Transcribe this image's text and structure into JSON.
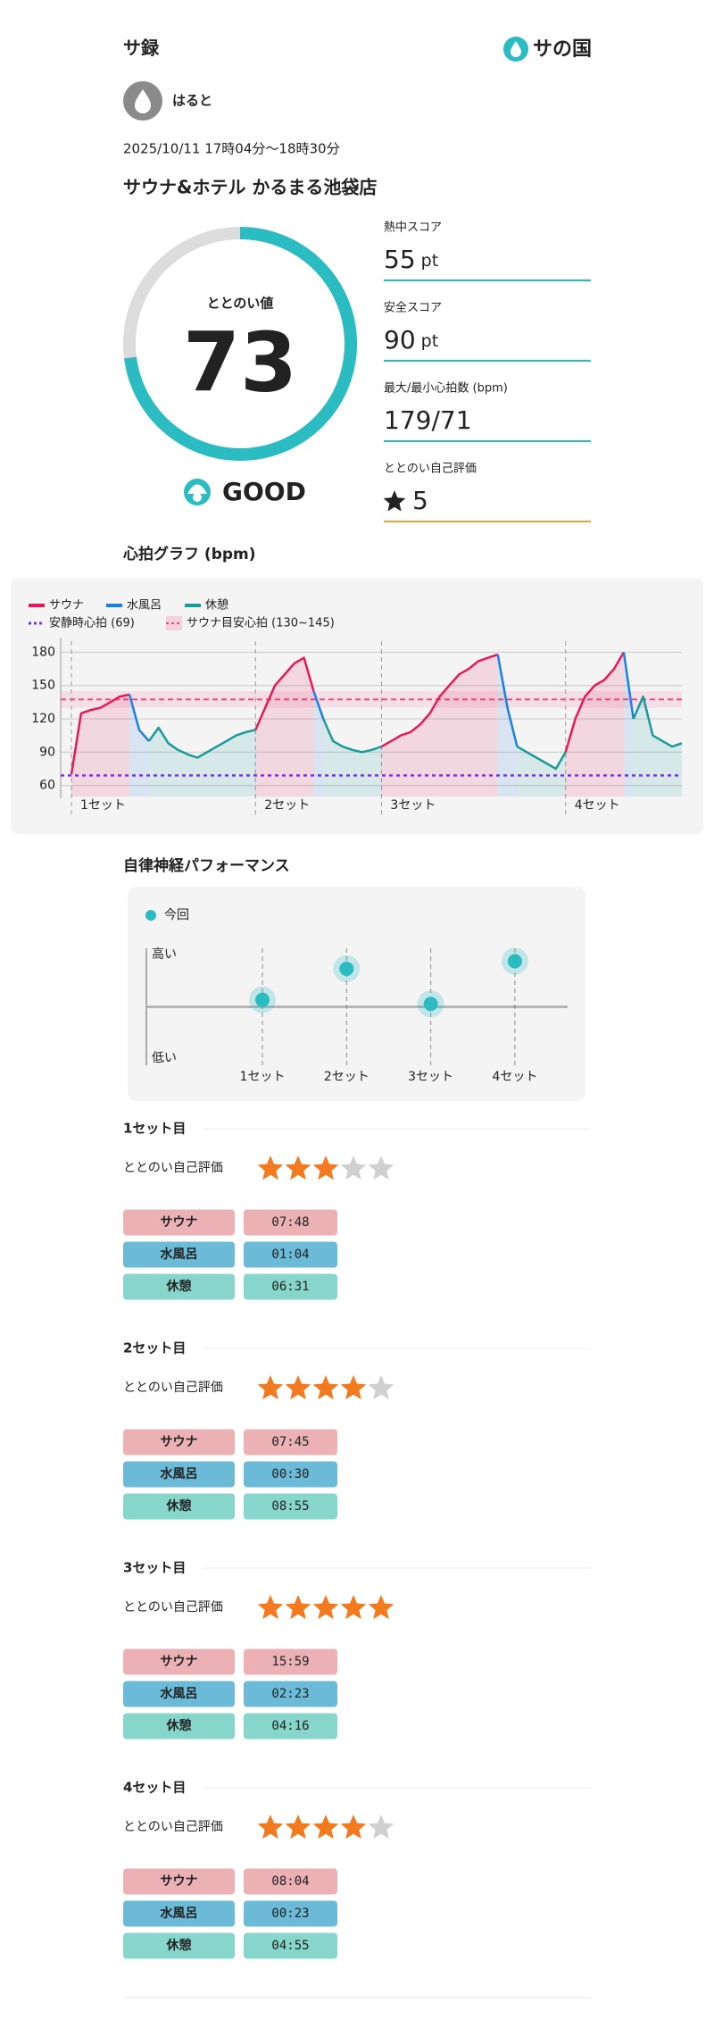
{
  "header": {
    "title": "サ録",
    "logo": "サの国"
  },
  "user": {
    "name": "はると"
  },
  "session": {
    "date": "2025/10/11 17時04分〜18時30分",
    "venue": "サウナ&ホテル かるまる池袋店"
  },
  "score": {
    "label": "ととのい値",
    "value": 73,
    "max": 100,
    "grade": "GOOD",
    "color": "#2bbcc2"
  },
  "metrics": [
    {
      "label": "熱中スコア",
      "value": 55,
      "unit": "pt"
    },
    {
      "label": "安全スコア",
      "value": 90,
      "unit": "pt"
    },
    {
      "label": "最大/最小心拍数 (bpm)",
      "value": "179/71"
    },
    {
      "label": "ととのい自己評価",
      "value": 5
    }
  ],
  "heart_chart": {
    "type": "line",
    "title": "心拍グラフ (bpm)",
    "categories": [
      "1セット",
      null,
      null,
      null,
      null,
      null,
      null,
      null,
      null,
      null,
      null,
      null,
      null,
      null,
      null,
      null,
      null,
      null,
      null,
      "2セット",
      null,
      null,
      null,
      null,
      null,
      null,
      null,
      null,
      null,
      null,
      null,
      null,
      "3セット",
      null,
      null,
      null,
      null,
      null,
      null,
      null,
      null,
      null,
      null,
      null,
      null,
      null,
      null,
      null,
      null,
      null,
      null,
      "4セット",
      null,
      null,
      null,
      null,
      null,
      null,
      null,
      null,
      null,
      null,
      null,
      null
    ],
    "series": [
      {
        "name": "サウナ",
        "color": "#e8195a",
        "values": [
          70,
          125,
          128,
          130,
          135,
          140,
          142,
          null,
          null,
          null,
          null,
          null,
          null,
          null,
          null,
          null,
          null,
          null,
          null,
          110,
          130,
          150,
          160,
          170,
          175,
          145,
          null,
          null,
          null,
          null,
          null,
          null,
          95,
          100,
          105,
          108,
          115,
          125,
          140,
          150,
          160,
          165,
          172,
          175,
          178,
          null,
          null,
          null,
          null,
          null,
          null,
          90,
          120,
          140,
          150,
          155,
          165,
          180,
          null,
          null,
          null,
          null,
          null,
          null
        ]
      },
      {
        "name": "水風呂",
        "color": "#1e7fe0",
        "values": [
          null,
          null,
          null,
          null,
          null,
          null,
          142,
          110,
          100,
          null,
          null,
          null,
          null,
          null,
          null,
          null,
          null,
          null,
          null,
          null,
          null,
          null,
          null,
          null,
          null,
          145,
          120,
          null,
          null,
          null,
          null,
          null,
          null,
          null,
          null,
          null,
          null,
          null,
          null,
          null,
          null,
          null,
          null,
          null,
          178,
          130,
          95,
          null,
          null,
          null,
          null,
          null,
          null,
          null,
          null,
          null,
          null,
          180,
          120,
          null,
          null,
          null,
          null,
          null
        ]
      },
      {
        "name": "休憩",
        "color": "#1a9a9a",
        "values": [
          null,
          null,
          null,
          null,
          null,
          null,
          null,
          null,
          100,
          112,
          98,
          92,
          88,
          85,
          90,
          95,
          100,
          105,
          108,
          110,
          null,
          null,
          null,
          null,
          null,
          null,
          120,
          100,
          95,
          92,
          90,
          92,
          95,
          null,
          null,
          null,
          null,
          null,
          null,
          null,
          null,
          null,
          null,
          null,
          null,
          null,
          95,
          90,
          85,
          80,
          75,
          90,
          null,
          null,
          null,
          null,
          null,
          null,
          120,
          140,
          105,
          100,
          95,
          98
        ]
      }
    ],
    "rest_line": {
      "name": "安静時心拍 (69)",
      "value": 69,
      "color": "#7a2ff0"
    },
    "target_band": {
      "name": "サウナ目安心拍 (130~145)",
      "range": [
        130,
        145
      ],
      "color": "#f0487a"
    },
    "ylim": [
      50,
      190
    ],
    "yticks": [
      60,
      90,
      120,
      150,
      180
    ],
    "grid": true
  },
  "performance_chart": {
    "type": "scatter",
    "title": "自律神経パフォーマンス",
    "legend": "今回",
    "y_high": "高い",
    "y_low": "低い",
    "categories": [
      "1セット",
      "2セット",
      "3セット",
      "4セット"
    ],
    "values": [
      0.12,
      0.65,
      0.05,
      0.78
    ],
    "ylim": [
      -1,
      1
    ],
    "color": "#2bbcc2"
  },
  "phase_labels": [
    "サウナ",
    "水風呂",
    "休憩"
  ],
  "phase_colors": [
    "#ebb1b5",
    "#6bbad8",
    "#86d6cc"
  ],
  "rating_max": 5,
  "sets": [
    {
      "title": "1セット目",
      "rating_label": "ととのい自己評価",
      "rating": 3,
      "times": [
        "07:48",
        "01:04",
        "06:31"
      ]
    },
    {
      "title": "2セット目",
      "rating_label": "ととのい自己評価",
      "rating": 4,
      "times": [
        "07:45",
        "00:30",
        "08:55"
      ]
    },
    {
      "title": "3セット目",
      "rating_label": "ととのい自己評価",
      "rating": 5,
      "times": [
        "15:59",
        "02:23",
        "04:16"
      ]
    },
    {
      "title": "4セット目",
      "rating_label": "ととのい自己評価",
      "rating": 4,
      "times": [
        "08:04",
        "00:23",
        "04:55"
      ]
    }
  ]
}
